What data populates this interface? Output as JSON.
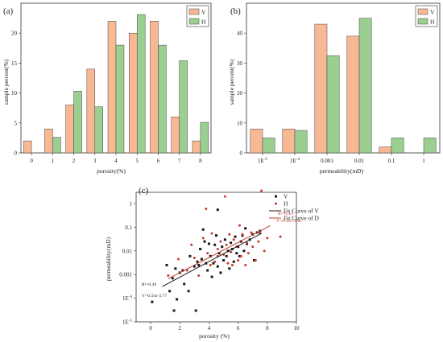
{
  "chart_data": [
    {
      "type": "bar",
      "panel_label": "(a)",
      "xlabel": "porosity(%)",
      "ylabel": "sample percent(%)",
      "ylim": [
        0,
        25
      ],
      "yticks": [
        "0",
        "5",
        "10",
        "15",
        "20"
      ],
      "categories": [
        "0",
        "1",
        "2",
        "3",
        "4",
        "5",
        "6",
        "7",
        "8"
      ],
      "legend_position": "top-right",
      "series": [
        {
          "name": "V",
          "color": "#f8b894",
          "values": [
            2,
            4,
            8,
            14,
            22,
            20,
            22,
            6,
            2
          ]
        },
        {
          "name": "H",
          "color": "#9bcf92",
          "values": [
            0,
            2.6,
            10.3,
            7.7,
            18,
            23.1,
            18,
            15.4,
            5.1
          ]
        }
      ]
    },
    {
      "type": "bar",
      "panel_label": "(b)",
      "xlabel": "permeability(mD)",
      "ylabel": "sample percent(%)",
      "ylim": [
        0,
        50
      ],
      "yticks": [
        "0",
        "10",
        "20",
        "30",
        "40"
      ],
      "categories": [
        "1E-5",
        "1E-4",
        "0.001",
        "0.01",
        "0.1",
        "1"
      ],
      "legend_position": "top-right",
      "series": [
        {
          "name": "V",
          "color": "#f8b894",
          "values": [
            8,
            8,
            43,
            39,
            2,
            0
          ]
        },
        {
          "name": "H",
          "color": "#9bcf92",
          "values": [
            5,
            7.5,
            32.5,
            45,
            5,
            5
          ]
        }
      ]
    },
    {
      "type": "scatter",
      "panel_label": "(c)",
      "xlabel": "porosity  (%)",
      "ylabel": "permeability(mD)",
      "xlim": [
        -1,
        10
      ],
      "ylim": [
        1e-05,
        3
      ],
      "yscale": "log",
      "xticks": [
        "0",
        "2",
        "4",
        "6",
        "8",
        "10"
      ],
      "yticks": [
        "1",
        "0.1",
        "0.01",
        "0.001",
        "1E-4",
        "1E-5"
      ],
      "legend_position": "top-right",
      "legend": [
        "V",
        "H",
        "Fit Curve of V",
        "Fit Curve of D"
      ],
      "annotations": {
        "v_r2": "R²=0.49",
        "v_eq": "Y=0.33x-3.77",
        "h_r2": "R²=0.34",
        "h_eq": "Y=0.32x-3.56"
      },
      "fits": [
        {
          "name": "Fit Curve of V",
          "color": "#1a1a1a",
          "slope": 0.33,
          "intercept": -3.77,
          "x_range": [
            0.8,
            7.6
          ]
        },
        {
          "name": "Fit Curve of D",
          "color": "#c0392b",
          "slope": 0.32,
          "intercept": -3.56,
          "x_range": [
            1.2,
            8.2
          ]
        }
      ],
      "series": [
        {
          "name": "V",
          "color": "#1a1a1a",
          "points": [
            [
              0.1,
              7e-05
            ],
            [
              1.1,
              0.0025
            ],
            [
              1.3,
              0.0002
            ],
            [
              1.5,
              0.0007
            ],
            [
              1.6,
              3e-05
            ],
            [
              1.7,
              0.0018
            ],
            [
              1.8,
              9e-05
            ],
            [
              2.0,
              0.0012
            ],
            [
              2.3,
              0.0004
            ],
            [
              2.6,
              0.0002
            ],
            [
              2.7,
              0.006
            ],
            [
              3.0,
              0.0022
            ],
            [
              3.1,
              3e-05
            ],
            [
              3.3,
              0.0025
            ],
            [
              3.4,
              0.012
            ],
            [
              3.5,
              0.0045
            ],
            [
              3.6,
              0.08
            ],
            [
              3.7,
              0.025
            ],
            [
              3.8,
              0.003
            ],
            [
              3.9,
              0.0015
            ],
            [
              4.0,
              0.02
            ],
            [
              4.1,
              0.006
            ],
            [
              4.2,
              0.0008
            ],
            [
              4.3,
              0.003
            ],
            [
              4.4,
              0.018
            ],
            [
              4.5,
              0.045
            ],
            [
              4.6,
              0.0022
            ],
            [
              4.7,
              0.008
            ],
            [
              4.8,
              0.0012
            ],
            [
              4.9,
              0.015
            ],
            [
              5.0,
              0.004
            ],
            [
              5.1,
              0.03
            ],
            [
              5.2,
              0.006
            ],
            [
              5.3,
              0.01
            ],
            [
              5.4,
              0.0018
            ],
            [
              5.5,
              0.022
            ],
            [
              5.6,
              0.012
            ],
            [
              5.7,
              0.0035
            ],
            [
              5.8,
              0.04
            ],
            [
              5.9,
              0.008
            ],
            [
              6.0,
              0.015
            ],
            [
              6.1,
              0.006
            ],
            [
              6.2,
              0.025
            ],
            [
              6.3,
              0.045
            ],
            [
              6.4,
              0.01
            ],
            [
              6.5,
              0.09
            ],
            [
              6.6,
              0.02
            ],
            [
              6.8,
              0.03
            ],
            [
              7.0,
              0.05
            ],
            [
              7.1,
              0.004
            ],
            [
              7.3,
              0.06
            ],
            [
              7.5,
              0.07
            ],
            [
              3.2,
              0.0035
            ],
            [
              2.2,
              0.0015
            ],
            [
              4.6,
              0.55
            ]
          ]
        },
        {
          "name": "H",
          "color": "#d0352b",
          "points": [
            [
              1.2,
              0.0009
            ],
            [
              1.9,
              0.0045
            ],
            [
              2.5,
              0.0015
            ],
            [
              2.8,
              0.018
            ],
            [
              3.0,
              0.005
            ],
            [
              3.3,
              0.0009
            ],
            [
              3.6,
              0.035
            ],
            [
              3.8,
              0.6
            ],
            [
              3.9,
              0.008
            ],
            [
              4.1,
              0.0025
            ],
            [
              4.2,
              0.055
            ],
            [
              4.4,
              0.0035
            ],
            [
              4.6,
              0.012
            ],
            [
              4.8,
              0.025
            ],
            [
              5.0,
              0.007
            ],
            [
              5.1,
              2.0
            ],
            [
              5.2,
              0.018
            ],
            [
              5.3,
              0.003
            ],
            [
              5.4,
              0.05
            ],
            [
              5.5,
              0.009
            ],
            [
              5.6,
              0.0025
            ],
            [
              5.7,
              0.03
            ],
            [
              5.9,
              0.015
            ],
            [
              6.0,
              0.004
            ],
            [
              6.1,
              0.12
            ],
            [
              6.2,
              0.006
            ],
            [
              6.3,
              0.05
            ],
            [
              6.5,
              0.0025
            ],
            [
              6.6,
              0.022
            ],
            [
              6.7,
              0.008
            ],
            [
              6.9,
              0.06
            ],
            [
              7.0,
              0.015
            ],
            [
              7.2,
              0.004
            ],
            [
              7.4,
              0.025
            ],
            [
              7.5,
              0.055
            ],
            [
              7.6,
              3.5
            ],
            [
              7.8,
              0.01
            ],
            [
              8.0,
              0.035
            ],
            [
              8.9,
              0.04
            ],
            [
              4.6,
              0.006
            ]
          ]
        }
      ]
    }
  ]
}
